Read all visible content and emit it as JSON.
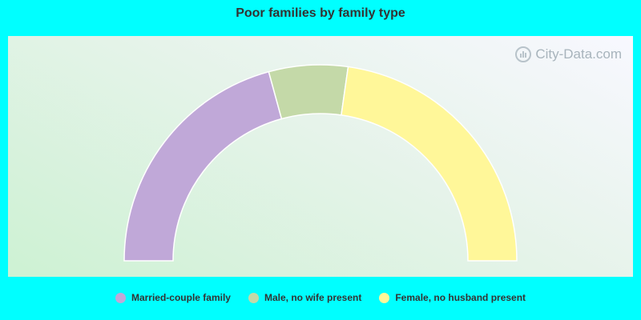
{
  "chart_data": {
    "type": "pie",
    "title": "Poor families by family type",
    "style": "half-donut",
    "legend_position": "bottom",
    "series": [
      {
        "name": "Married-couple family",
        "value": 41.5,
        "color": "#c0a8d8"
      },
      {
        "name": "Male, no wife present",
        "value": 13.0,
        "color": "#c4d9a8"
      },
      {
        "name": "Female, no husband present",
        "value": 45.5,
        "color": "#fff799"
      }
    ]
  },
  "watermark": {
    "text": "City-Data.com"
  }
}
